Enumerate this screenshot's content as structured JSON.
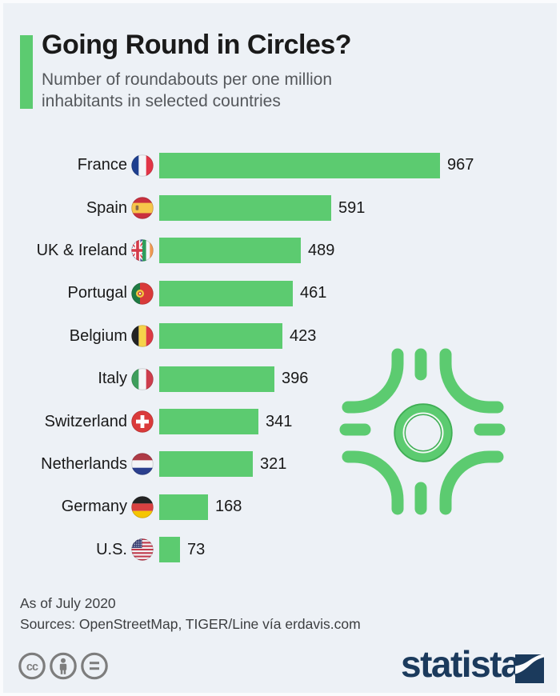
{
  "page": {
    "background": "#EDF1F6",
    "accent_green": "#5CCB70"
  },
  "header": {
    "title": "Going Round in Circles?",
    "subtitle": "Number of roundabouts per one million\ninhabitants in selected countries"
  },
  "chart_data": {
    "type": "bar",
    "orientation": "horizontal",
    "title": "Going Round in Circles?",
    "subtitle": "Number of roundabouts per one million inhabitants in selected countries",
    "unit": "roundabouts per one million inhabitants",
    "bar_color": "#5CCB70",
    "xlim": [
      0,
      1000
    ],
    "grid": false,
    "legend": false,
    "categories": [
      "France",
      "Spain",
      "UK & Ireland",
      "Portugal",
      "Belgium",
      "Italy",
      "Switzerland",
      "Netherlands",
      "Germany",
      "U.S."
    ],
    "values": [
      967,
      591,
      489,
      461,
      423,
      396,
      341,
      321,
      168,
      73
    ],
    "flags": [
      "france",
      "spain",
      "uk-ireland",
      "portugal",
      "belgium",
      "italy",
      "switzerland",
      "netherlands",
      "germany",
      "us"
    ]
  },
  "decoration": {
    "roundabout_icon_color": "#5CCB70"
  },
  "footer": {
    "as_of": "As of July 2020",
    "sources": "Sources: OpenStreetMap, TIGER/Line vía erdavis.com"
  },
  "license": {
    "icons": [
      "cc-icon",
      "by-icon",
      "nd-icon"
    ],
    "color": "#7D7D7D"
  },
  "branding": {
    "wordmark": "statista",
    "color": "#1B3A5C"
  }
}
